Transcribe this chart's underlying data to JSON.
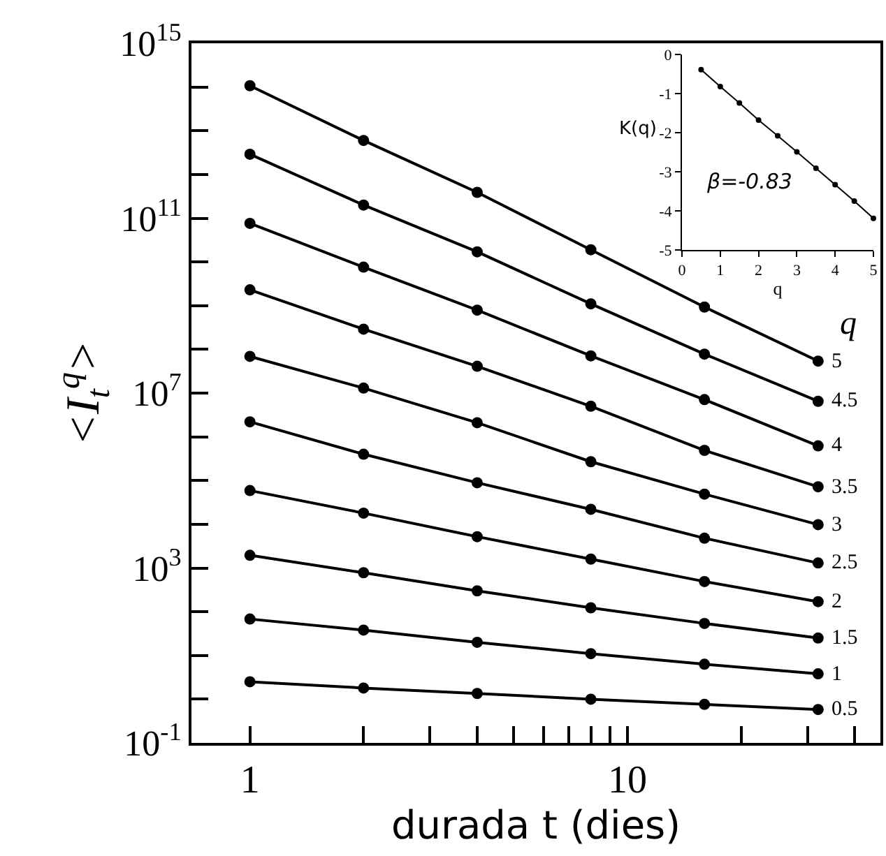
{
  "chart_data": [
    {
      "type": "line",
      "xlabel": "durada t (dies)",
      "ylabel": "<I$_{t}$$^{q}$>",
      "legend_title": "q",
      "log": "xy",
      "legend": false,
      "marker": "circle",
      "line_style": "solid",
      "x": [
        1,
        2,
        4,
        8,
        16,
        32
      ],
      "xlim": [
        0.7,
        46.8
      ],
      "xticks": [
        1,
        {
          "value": 2,
          "label": null
        },
        {
          "value": 3,
          "label": null
        },
        {
          "value": 4,
          "label": null
        },
        {
          "value": 5,
          "label": null
        },
        {
          "value": 6,
          "label": null
        },
        {
          "value": 7,
          "label": null
        },
        {
          "value": 8,
          "label": null
        },
        {
          "value": 9,
          "label": null
        },
        10,
        {
          "value": 20,
          "label": null
        },
        {
          "value": 30,
          "label": null
        },
        {
          "value": 40,
          "label": null
        }
      ],
      "ylim": [
        0.1,
        1000000000000000.0
      ],
      "yticks": [
        {
          "value": 0.1,
          "label": "10$^{-1}$"
        },
        {
          "value": 1,
          "label": null
        },
        {
          "value": 10,
          "label": null
        },
        {
          "value": 100,
          "label": null
        },
        {
          "value": 1000,
          "label": "10$^{3}$"
        },
        {
          "value": 10000.0,
          "label": null
        },
        {
          "value": 100000.0,
          "label": null
        },
        {
          "value": 1000000.0,
          "label": null
        },
        {
          "value": 10000000.0,
          "label": "10$^{7}$"
        },
        {
          "value": 100000000.0,
          "label": null
        },
        {
          "value": 1000000000.0,
          "label": null
        },
        {
          "value": 10000000000.0,
          "label": null
        },
        {
          "value": 100000000000.0,
          "label": "10$^{11}$"
        },
        {
          "value": 1000000000000.0,
          "label": null
        },
        {
          "value": 10000000000000.0,
          "label": null
        },
        {
          "value": 100000000000000.0,
          "label": null
        },
        {
          "value": 1000000000000000.0,
          "label": "10$^{15}$"
        }
      ],
      "series": [
        {
          "name": "5",
          "color": "#000000",
          "values": [
            107000000000000.0,
            6000000000000.0,
            390000000000.0,
            19000000000.0,
            930000000.0,
            54000000.0
          ]
        },
        {
          "name": "4.5",
          "color": "#000000",
          "values": [
            2900000000000.0,
            200000000000.0,
            17000000000.0,
            1100000000.0,
            78000000.0,
            6500000.0
          ]
        },
        {
          "name": "4",
          "color": "#000000",
          "values": [
            76000000000.0,
            7600000000.0,
            790000000.0,
            71000000.0,
            7100000.0,
            620000.0
          ]
        },
        {
          "name": "3.5",
          "color": "#000000",
          "values": [
            2300000000.0,
            290000000.0,
            41000000.0,
            5000000.0,
            490000.0,
            72000.0
          ]
        },
        {
          "name": "3",
          "color": "#000000",
          "values": [
            69000000.0,
            13000000.0,
            2100000.0,
            270000.0,
            49000.0,
            9800.0
          ]
        },
        {
          "name": "2.5",
          "color": "#000000",
          "values": [
            2200000.0,
            400000.0,
            89000.0,
            22000.0,
            4800.0,
            1300.0
          ]
        },
        {
          "name": "2",
          "color": "#000000",
          "values": [
            59000.0,
            18000.0,
            5200.0,
            1600.0,
            490,
            170
          ]
        },
        {
          "name": "1.5",
          "color": "#000000",
          "values": [
            1950,
            780,
            300,
            123,
            54,
            25
          ]
        },
        {
          "name": "1",
          "color": "#000000",
          "values": [
            68,
            38,
            20,
            11,
            6.3,
            3.8
          ]
        },
        {
          "name": "0.5",
          "color": "#000000",
          "values": [
            2.5,
            1.8,
            1.35,
            1.0,
            0.76,
            0.58
          ]
        }
      ]
    },
    {
      "type": "line",
      "xlabel": "q",
      "ylabel": "K(q)",
      "legend": false,
      "marker": "circle",
      "line_style": "solid",
      "annotations": [
        "β=-0.83"
      ],
      "x": [
        0.5,
        1,
        1.5,
        2,
        2.5,
        3,
        3.5,
        4,
        4.5,
        5
      ],
      "xlim": [
        0,
        5
      ],
      "xticks": [
        0,
        1,
        2,
        3,
        4,
        5
      ],
      "ylim": [
        -5,
        0
      ],
      "yticks": [
        -5,
        -4,
        -3,
        -2,
        -1,
        0
      ],
      "series": [
        {
          "color": "#000000",
          "values": [
            -0.39,
            -0.82,
            -1.24,
            -1.68,
            -2.08,
            -2.49,
            -2.91,
            -3.33,
            -3.75,
            -4.19
          ]
        }
      ]
    }
  ]
}
